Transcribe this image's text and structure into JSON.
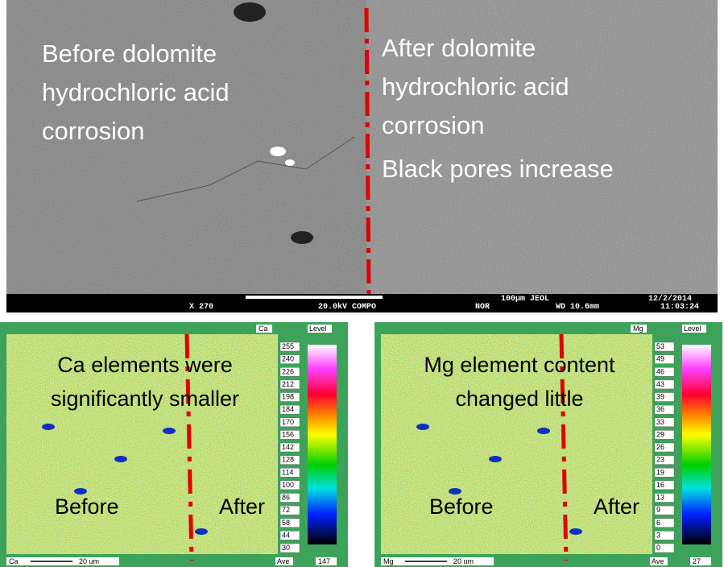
{
  "sem": {
    "left_label": [
      "Before dolomite",
      "hydrochloric acid",
      "corrosion"
    ],
    "right_label": [
      "After dolomite",
      "hydrochloric acid",
      "corrosion",
      "Black pores increase"
    ],
    "info": [
      "X 270",
      "20.0kV COMPO",
      "100µm JEOL",
      "NOR",
      "WD 10.6mm",
      "12/2/2014",
      "11:03:24"
    ]
  },
  "maps": [
    {
      "element": "Ca",
      "level": "Level",
      "caption": [
        "Ca elements were",
        "significantly smaller"
      ],
      "before": "Before",
      "after": "After",
      "scale": [
        255,
        240,
        226,
        212,
        198,
        184,
        170,
        156,
        142,
        128,
        114,
        100,
        86,
        72,
        58,
        44,
        30
      ],
      "footer": {
        "element": "Ca",
        "bar": "20 um",
        "ave": "Ave",
        "ave_value": 147
      }
    },
    {
      "element": "Mg",
      "level": "Level",
      "caption": [
        "Mg element content",
        "changed little"
      ],
      "before": "Before",
      "after": "After",
      "scale": [
        53,
        49,
        46,
        43,
        39,
        36,
        33,
        29,
        26,
        23,
        19,
        16,
        13,
        9,
        6,
        3,
        0
      ],
      "footer": {
        "element": "Mg",
        "bar": "20 um",
        "ave": "Ave",
        "ave_value": 27
      }
    }
  ]
}
